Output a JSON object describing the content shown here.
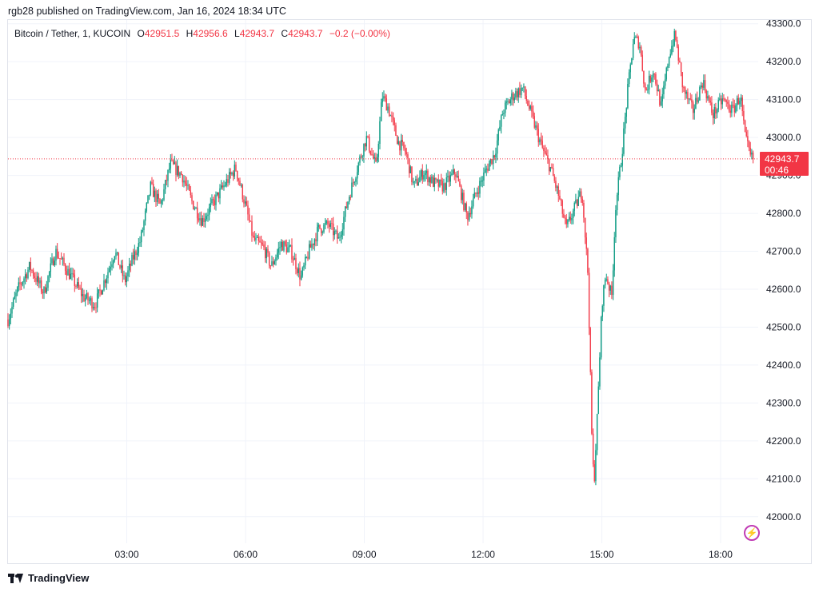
{
  "header": {
    "published_line": "rgb28 published on TradingView.com, Jan 16, 2024 18:34 UTC"
  },
  "legend": {
    "symbol": "Bitcoin / Tether, 1, KUCOIN",
    "open_label": "O",
    "open_value": "42951.5",
    "high_label": "H",
    "high_value": "42956.6",
    "low_label": "L",
    "low_value": "42943.7",
    "close_label": "C",
    "close_value": "42943.7",
    "change": "−0.2 (−0.00%)"
  },
  "price_tag": {
    "price": "42943.7",
    "countdown": "00:46"
  },
  "footer": {
    "brand": "TradingView",
    "logo_icon": "tradingview-logo-icon",
    "bolt_icon": "lightning-icon"
  },
  "colors": {
    "up": "#089981",
    "down": "#f23645",
    "grid": "#f0f3fa",
    "axis_text": "#131722",
    "dotted_line": "#f23645"
  },
  "chart_data": {
    "type": "candlestick",
    "symbol": "Bitcoin / Tether",
    "interval_minutes": 1,
    "exchange": "KUCOIN",
    "x_tick_labels": [
      "03:00",
      "06:00",
      "09:00",
      "12:00",
      "15:00",
      "18:00"
    ],
    "y_tick_labels": [
      "42000.0",
      "42100.0",
      "42200.0",
      "42300.0",
      "42400.0",
      "42500.0",
      "42600.0",
      "42700.0",
      "42800.0",
      "42900.0",
      "43000.0",
      "43100.0",
      "43200.0",
      "43300.0"
    ],
    "ylim": [
      41930,
      43310
    ],
    "xlim_hours": [
      0.0,
      18.95
    ],
    "last_price": 42943.7,
    "grid": true,
    "close_path": [
      [
        0.0,
        42520
      ],
      [
        0.25,
        42600
      ],
      [
        0.55,
        42660
      ],
      [
        0.9,
        42590
      ],
      [
        1.2,
        42700
      ],
      [
        1.55,
        42640
      ],
      [
        1.9,
        42580
      ],
      [
        2.2,
        42560
      ],
      [
        2.5,
        42640
      ],
      [
        2.7,
        42700
      ],
      [
        2.95,
        42620
      ],
      [
        3.15,
        42680
      ],
      [
        3.35,
        42730
      ],
      [
        3.6,
        42870
      ],
      [
        3.85,
        42820
      ],
      [
        4.1,
        42930
      ],
      [
        4.4,
        42900
      ],
      [
        4.65,
        42830
      ],
      [
        4.9,
        42780
      ],
      [
        5.2,
        42830
      ],
      [
        5.5,
        42880
      ],
      [
        5.75,
        42920
      ],
      [
        6.0,
        42820
      ],
      [
        6.2,
        42730
      ],
      [
        6.45,
        42710
      ],
      [
        6.65,
        42660
      ],
      [
        6.9,
        42720
      ],
      [
        7.15,
        42700
      ],
      [
        7.4,
        42630
      ],
      [
        7.6,
        42700
      ],
      [
        7.85,
        42760
      ],
      [
        8.1,
        42770
      ],
      [
        8.35,
        42730
      ],
      [
        8.6,
        42840
      ],
      [
        8.85,
        42930
      ],
      [
        9.05,
        43000
      ],
      [
        9.3,
        42920
      ],
      [
        9.45,
        43110
      ],
      [
        9.6,
        43080
      ],
      [
        9.85,
        42990
      ],
      [
        10.05,
        42960
      ],
      [
        10.25,
        42870
      ],
      [
        10.5,
        42910
      ],
      [
        10.75,
        42880
      ],
      [
        11.0,
        42870
      ],
      [
        11.3,
        42910
      ],
      [
        11.6,
        42790
      ],
      [
        11.85,
        42860
      ],
      [
        12.1,
        42920
      ],
      [
        12.3,
        42960
      ],
      [
        12.5,
        43070
      ],
      [
        12.75,
        43110
      ],
      [
        13.0,
        43130
      ],
      [
        13.25,
        43050
      ],
      [
        13.5,
        42970
      ],
      [
        13.7,
        42920
      ],
      [
        13.9,
        42850
      ],
      [
        14.1,
        42760
      ],
      [
        14.3,
        42810
      ],
      [
        14.5,
        42860
      ],
      [
        14.65,
        42640
      ],
      [
        14.75,
        42200
      ],
      [
        14.8,
        42080
      ],
      [
        14.9,
        42300
      ],
      [
        15.0,
        42560
      ],
      [
        15.1,
        42640
      ],
      [
        15.25,
        42580
      ],
      [
        15.35,
        42820
      ],
      [
        15.5,
        42950
      ],
      [
        15.65,
        43120
      ],
      [
        15.8,
        43260
      ],
      [
        15.95,
        43250
      ],
      [
        16.1,
        43120
      ],
      [
        16.3,
        43180
      ],
      [
        16.5,
        43080
      ],
      [
        16.7,
        43220
      ],
      [
        16.85,
        43270
      ],
      [
        17.05,
        43130
      ],
      [
        17.3,
        43070
      ],
      [
        17.55,
        43150
      ],
      [
        17.8,
        43060
      ],
      [
        18.05,
        43100
      ],
      [
        18.3,
        43070
      ],
      [
        18.5,
        43110
      ],
      [
        18.62,
        43000
      ],
      [
        18.75,
        42950
      ],
      [
        18.82,
        42943.7
      ]
    ]
  }
}
